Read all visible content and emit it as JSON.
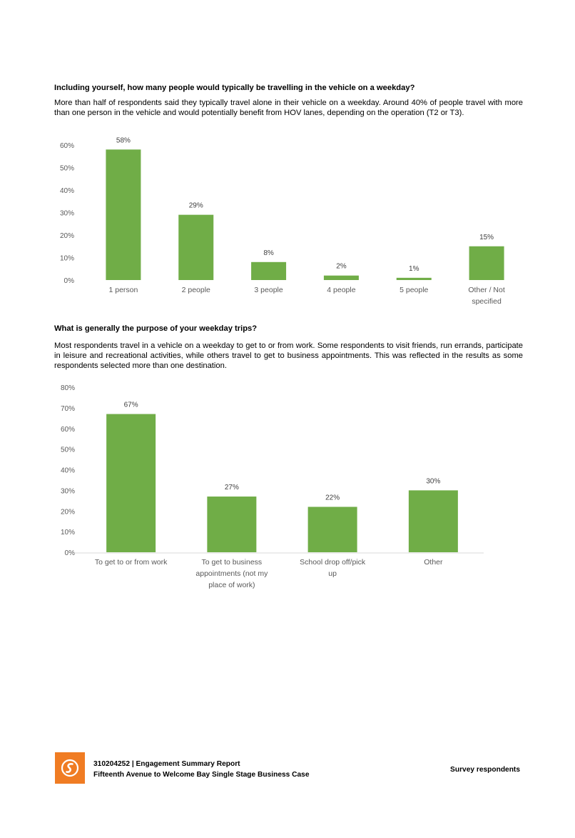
{
  "section1": {
    "title": "Including yourself, how many people would typically be travelling in the vehicle on a weekday?",
    "body": "More than half of respondents said they typically travel alone in their vehicle on a weekday. Around 40% of people travel with more than one person in the vehicle and would potentially benefit from HOV lanes, depending on the operation (T2 or T3)."
  },
  "section2": {
    "title": "What is generally the purpose of your weekday trips?",
    "body": "Most respondents travel in a vehicle on a weekday to get to or from work. Some respondents to visit friends, run errands, participate in leisure and recreational activities, while others travel to get to business appointments. This was reflected in the results as some respondents selected more than one destination."
  },
  "chart_data": [
    {
      "type": "bar",
      "title": "",
      "xlabel": "",
      "ylabel": "",
      "categories": [
        "1 person",
        "2 people",
        "3 people",
        "4 people",
        "5 people",
        "Other / Not specified"
      ],
      "values": [
        58,
        29,
        8,
        2,
        1,
        15
      ],
      "data_labels": [
        "58%",
        "29%",
        "8%",
        "2%",
        "1%",
        "15%"
      ],
      "y_ticks": [
        "0%",
        "10%",
        "20%",
        "30%",
        "40%",
        "50%",
        "60%"
      ],
      "ylim": [
        0,
        60
      ],
      "grid": false,
      "bar_color": "#70ad47"
    },
    {
      "type": "bar",
      "title": "",
      "xlabel": "",
      "ylabel": "",
      "categories": [
        "To get to or from work",
        "To get to business appointments (not my place of work)",
        "School drop off/pick up",
        "Other"
      ],
      "values": [
        67,
        27,
        22,
        30
      ],
      "data_labels": [
        "67%",
        "27%",
        "22%",
        "30%"
      ],
      "y_ticks": [
        "0%",
        "10%",
        "20%",
        "30%",
        "40%",
        "50%",
        "60%",
        "70%",
        "80%"
      ],
      "ylim": [
        0,
        80
      ],
      "grid": false,
      "bar_color": "#70ad47"
    }
  ],
  "footer": {
    "line1": "310204252 | Engagement Summary Report",
    "line2": "Fifteenth Avenue to Welcome Bay Single Stage Business Case",
    "right": "Survey respondents",
    "logo_color": "#f07c23"
  }
}
